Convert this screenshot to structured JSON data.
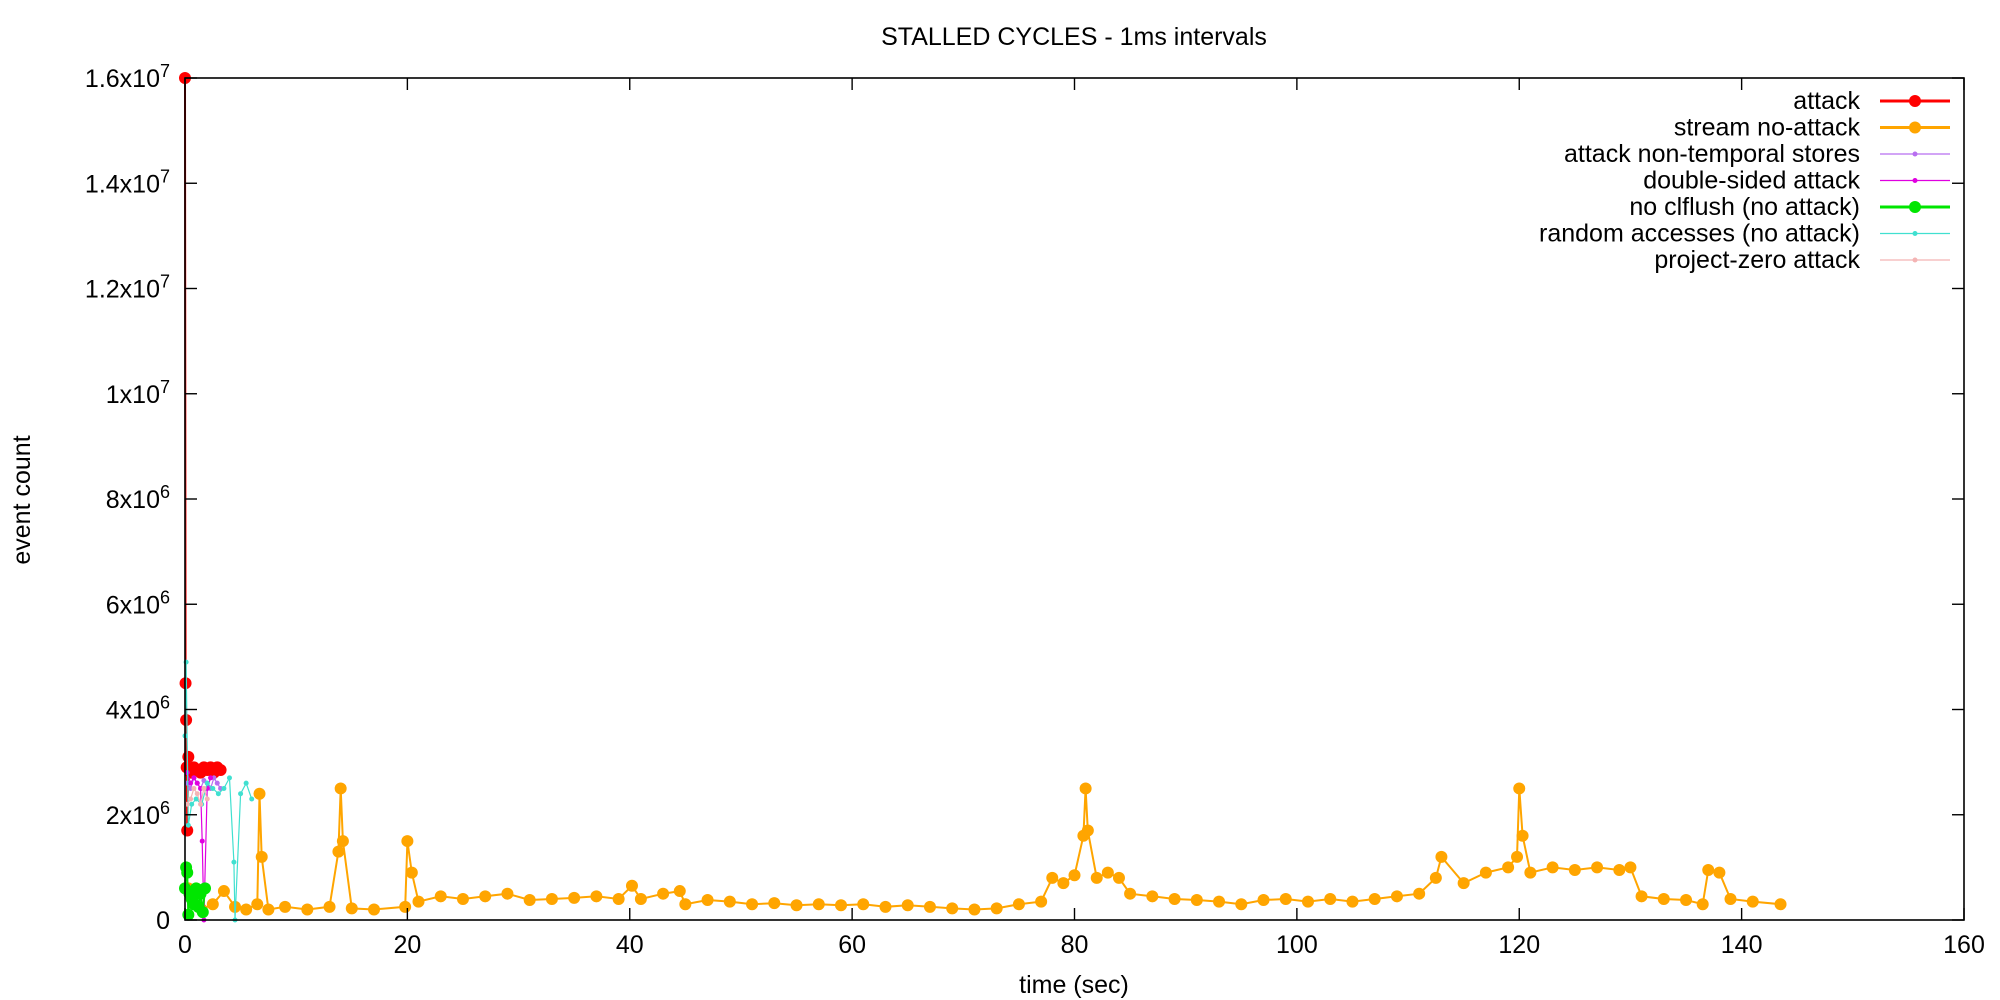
{
  "chart_data": {
    "type": "line",
    "title": "STALLED CYCLES - 1ms intervals",
    "xlabel": "time (sec)",
    "ylabel": "event count",
    "xlim": [
      0,
      160
    ],
    "ylim": [
      0,
      16000000
    ],
    "grid": false,
    "legend_position": "top-right",
    "x_ticks": [
      {
        "value": 0,
        "label": "0"
      },
      {
        "value": 20,
        "label": "20"
      },
      {
        "value": 40,
        "label": "40"
      },
      {
        "value": 60,
        "label": "60"
      },
      {
        "value": 80,
        "label": "80"
      },
      {
        "value": 100,
        "label": "100"
      },
      {
        "value": 120,
        "label": "120"
      },
      {
        "value": 140,
        "label": "140"
      },
      {
        "value": 160,
        "label": "160"
      }
    ],
    "y_ticks": [
      {
        "value": 0,
        "mantissa": "0",
        "exponent": ""
      },
      {
        "value": 2000000,
        "mantissa": "2x10",
        "exponent": "6"
      },
      {
        "value": 4000000,
        "mantissa": "4x10",
        "exponent": "6"
      },
      {
        "value": 6000000,
        "mantissa": "6x10",
        "exponent": "6"
      },
      {
        "value": 8000000,
        "mantissa": "8x10",
        "exponent": "6"
      },
      {
        "value": 10000000,
        "mantissa": "1x10",
        "exponent": "7"
      },
      {
        "value": 12000000,
        "mantissa": "1.2x10",
        "exponent": "7"
      },
      {
        "value": 14000000,
        "mantissa": "1.4x10",
        "exponent": "7"
      },
      {
        "value": 16000000,
        "mantissa": "1.6x10",
        "exponent": "7"
      }
    ],
    "series": [
      {
        "name": "stream no-attack",
        "color": "#ffa500",
        "marker": "circle-large",
        "x": [
          0.3,
          1.5,
          2.5,
          3.5,
          4.5,
          5.5,
          6.5,
          6.7,
          6.9,
          7.5,
          9,
          11,
          13,
          13.8,
          14.0,
          14.2,
          15,
          17,
          19.8,
          20.0,
          20.4,
          21,
          23,
          25,
          27,
          29,
          31,
          33,
          35,
          37,
          39,
          40.2,
          41,
          43,
          44.5,
          45,
          47,
          49,
          51,
          53,
          55,
          57,
          59,
          61,
          63,
          65,
          67,
          69,
          71,
          73,
          75,
          77,
          78,
          79,
          80,
          80.8,
          81.0,
          81.2,
          82,
          83,
          84,
          85,
          87,
          89,
          91,
          93,
          95,
          97,
          99,
          101,
          103,
          105,
          107,
          109,
          111,
          112.5,
          113,
          115,
          117,
          119,
          119.8,
          120.0,
          120.3,
          121,
          123,
          125,
          127,
          129,
          130,
          131,
          133,
          135,
          136.5,
          137,
          138,
          139,
          141,
          143.5
        ],
        "y": [
          600000,
          200000,
          300000,
          550000,
          250000,
          200000,
          300000,
          2400000,
          1200000,
          200000,
          250000,
          200000,
          250000,
          1300000,
          2500000,
          1500000,
          220000,
          200000,
          250000,
          1500000,
          900000,
          350000,
          450000,
          400000,
          450000,
          500000,
          380000,
          400000,
          420000,
          450000,
          400000,
          650000,
          400000,
          500000,
          550000,
          300000,
          380000,
          350000,
          300000,
          320000,
          280000,
          300000,
          280000,
          300000,
          250000,
          280000,
          250000,
          220000,
          200000,
          220000,
          300000,
          350000,
          800000,
          700000,
          850000,
          1600000,
          2500000,
          1700000,
          800000,
          900000,
          800000,
          500000,
          450000,
          400000,
          380000,
          350000,
          300000,
          380000,
          400000,
          350000,
          400000,
          350000,
          400000,
          450000,
          500000,
          800000,
          1200000,
          700000,
          900000,
          1000000,
          1200000,
          2500000,
          1600000,
          900000,
          1000000,
          950000,
          1000000,
          950000,
          1000000,
          450000,
          400000,
          380000,
          300000,
          950000,
          900000,
          400000,
          350000,
          300000
        ]
      },
      {
        "name": "attack",
        "color": "#ff0000",
        "marker": "circle-large",
        "x": [
          0,
          0.05,
          0.1,
          0.15,
          0.2,
          0.3,
          0.5,
          0.8,
          1.1,
          1.4,
          1.7,
          2.0,
          2.3,
          2.6,
          2.9,
          3.2
        ],
        "y": [
          16000000,
          4500000,
          3800000,
          2900000,
          1700000,
          3100000,
          2800000,
          2900000,
          2850000,
          2800000,
          2900000,
          2850000,
          2900000,
          2800000,
          2900000,
          2850000
        ]
      },
      {
        "name": "attack non-temporal stores",
        "color": "#b86ef0",
        "marker": "dot",
        "x": [
          0.2,
          0.5,
          0.8,
          1.1,
          1.4,
          1.7,
          2.0,
          2.3,
          2.6,
          2.9,
          3.2
        ],
        "y": [
          2600000,
          2500000,
          2700000,
          2600000,
          2500000,
          2650000,
          2600000,
          2500000,
          2700000,
          2600000,
          2500000
        ]
      },
      {
        "name": "double-sided attack",
        "color": "#e000e0",
        "marker": "dot",
        "x": [
          0.2,
          0.5,
          0.8,
          1.1,
          1.4,
          1.55,
          1.7,
          2.0,
          2.3
        ],
        "y": [
          2800000,
          2600000,
          2700000,
          2600000,
          2500000,
          1500000,
          0,
          2500000,
          2700000
        ]
      },
      {
        "name": "no clflush (no attack)",
        "color": "#00e600",
        "marker": "circle-large",
        "x": [
          0,
          0.1,
          0.2,
          0.3,
          0.4,
          0.6,
          0.8,
          1.0,
          1.2,
          1.4,
          1.6,
          1.8
        ],
        "y": [
          600000,
          1000000,
          900000,
          100000,
          500000,
          400000,
          300000,
          600000,
          250000,
          500000,
          150000,
          600000
        ]
      },
      {
        "name": "random accesses (no attack)",
        "color": "#40e0d0",
        "marker": "dot",
        "x": [
          0,
          0.1,
          0.3,
          0.6,
          1.0,
          1.5,
          2.0,
          2.5,
          3.0,
          3.5,
          4.0,
          4.4,
          4.5,
          5.0,
          5.5,
          6.0
        ],
        "y": [
          3500000,
          4900000,
          1800000,
          2200000,
          2300000,
          2200000,
          2600000,
          2500000,
          2400000,
          2500000,
          2700000,
          1100000,
          0,
          2400000,
          2600000,
          2300000
        ]
      },
      {
        "name": "project-zero attack",
        "color": "#f4b4b4",
        "marker": "dot",
        "x": [
          0.2,
          0.5,
          0.8,
          1.1,
          1.4,
          1.7,
          2.0
        ],
        "y": [
          2200000,
          2300000,
          2500000,
          2400000,
          2200000,
          2500000,
          2300000
        ]
      }
    ],
    "legend_order": [
      "attack",
      "stream no-attack",
      "attack non-temporal stores",
      "double-sided attack",
      "no clflush (no attack)",
      "random accesses (no attack)",
      "project-zero attack"
    ]
  }
}
